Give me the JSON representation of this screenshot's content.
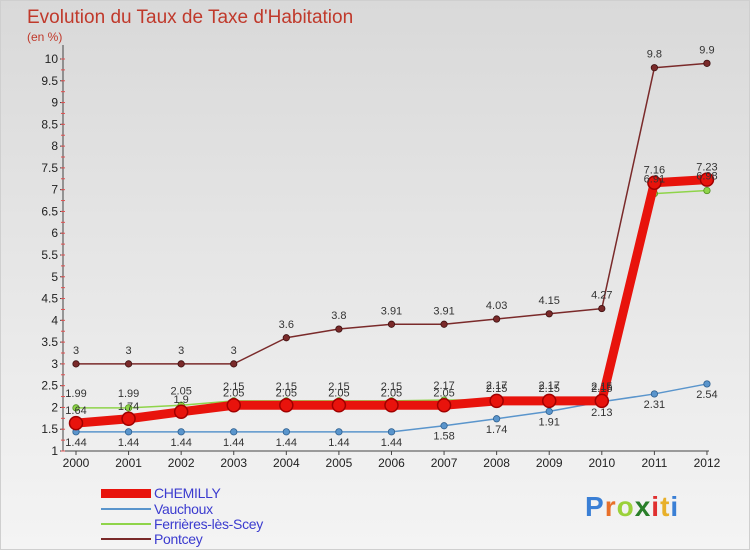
{
  "header": {
    "title": "Evolution du Taux de Taxe d'Habitation",
    "subtitle": "(en %)"
  },
  "brand": "Proxiti",
  "brand_colors": [
    "#3a7fd5",
    "#e8702a",
    "#9bd13a",
    "#2a7f2a",
    "#e03030",
    "#e8b02a",
    "#3a7fd5"
  ],
  "chart_data": {
    "type": "line",
    "title": "Evolution du Taux de Taxe d'Habitation",
    "ylabel": "(en %)",
    "xlabel": "",
    "x": [
      "2000",
      "2001",
      "2002",
      "2003",
      "2004",
      "2005",
      "2006",
      "2007",
      "2008",
      "2009",
      "2010",
      "2011",
      "2012"
    ],
    "y_ticks": [
      "1",
      "1.5",
      "2",
      "2.5",
      "3",
      "3.5",
      "4",
      "4.5",
      "5",
      "5.5",
      "6",
      "6.5",
      "7",
      "7.5",
      "8",
      "8.5",
      "9",
      "9.5",
      "10"
    ],
    "ylim": [
      1,
      10
    ],
    "grid": false,
    "legend_position": "bottom-left",
    "series": [
      {
        "name": "CHEMILLY",
        "color": "#e8130c",
        "values": [
          1.64,
          1.74,
          1.9,
          2.05,
          2.05,
          2.05,
          2.05,
          2.05,
          2.15,
          2.15,
          2.15,
          7.16,
          7.23
        ],
        "labels": [
          "1.64",
          "1.74",
          "1.9",
          "2.05",
          "2.05",
          "2.05",
          "2.05",
          "2.05",
          "2.15",
          "2.15",
          "2.15",
          "7.16",
          "7.23"
        ]
      },
      {
        "name": "Vauchoux",
        "color": "#5a95cc",
        "values": [
          1.44,
          1.44,
          1.44,
          1.44,
          1.44,
          1.44,
          1.44,
          1.58,
          1.74,
          1.91,
          2.13,
          2.31,
          2.54
        ],
        "labels": [
          "1.44",
          "1.44",
          "1.44",
          "1.44",
          "1.44",
          "1.44",
          "1.44",
          "1.58",
          "1.74",
          "1.91",
          "2.13",
          "2.31",
          "2.54"
        ]
      },
      {
        "name": "Ferrières-lès-Scey",
        "color": "#8fd44a",
        "values": [
          1.99,
          1.99,
          2.05,
          2.15,
          2.15,
          2.15,
          2.15,
          2.17,
          2.17,
          2.17,
          2.15,
          6.91,
          6.98
        ],
        "labels": [
          "1.99",
          "1.99",
          "2.05",
          "2.15",
          "2.15",
          "2.15",
          "2.15",
          "2.17",
          "2.17",
          "2.17",
          "2.15",
          "6.91",
          "6.98"
        ]
      },
      {
        "name": "Pontcey",
        "color": "#7a2a2a",
        "values": [
          3,
          3,
          3,
          3,
          3.6,
          3.8,
          3.91,
          3.91,
          4.03,
          4.15,
          4.27,
          9.8,
          9.9
        ],
        "labels": [
          "3",
          "3",
          "3",
          "3",
          "3.6",
          "3.8",
          "3.91",
          "3.91",
          "4.03",
          "4.15",
          "4.27",
          "9.8",
          "9.9"
        ]
      }
    ]
  }
}
